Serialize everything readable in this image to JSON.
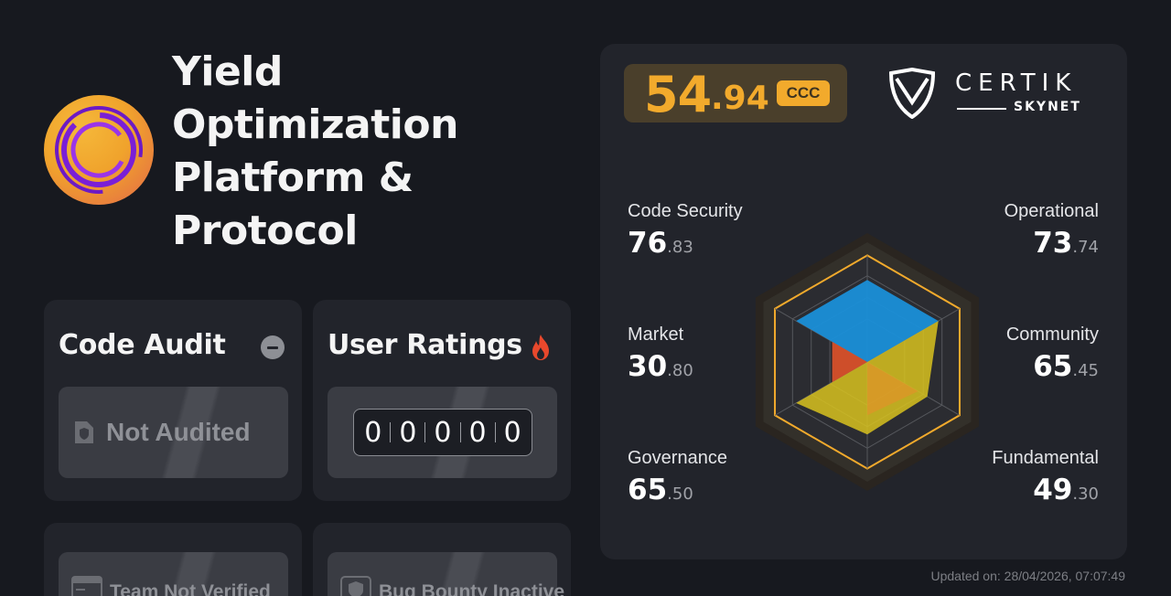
{
  "project": {
    "name": "Yield Optimization Platform & Protocol",
    "name_lines": [
      "Yield",
      "Optimization",
      "Platform &",
      "Protocol"
    ]
  },
  "code_audit": {
    "title": "Code Audit",
    "status": "Not Audited"
  },
  "user_ratings": {
    "title": "User Ratings",
    "digits": [
      "0",
      "0",
      "0",
      "0",
      "0"
    ]
  },
  "lower_cards": {
    "team": "Team Not Verified",
    "bounty": "Bug Bounty Inactive"
  },
  "score": {
    "integer": "54",
    "decimal": ".94",
    "grade": "CCC",
    "accent_color": "#f2aa2c"
  },
  "brand": {
    "name": "CERTIK",
    "sub": "SKYNET"
  },
  "metrics": {
    "code_security": {
      "label": "Code Security",
      "int": "76",
      "dec": ".83",
      "value": 76.83
    },
    "operational": {
      "label": "Operational",
      "int": "73",
      "dec": ".74",
      "value": 73.74
    },
    "market": {
      "label": "Market",
      "int": "30",
      "dec": ".80",
      "value": 30.8
    },
    "community": {
      "label": "Community",
      "int": "65",
      "dec": ".45",
      "value": 65.45
    },
    "governance": {
      "label": "Governance",
      "int": "65",
      "dec": ".50",
      "value": 65.5
    },
    "fundamental": {
      "label": "Fundamental",
      "int": "49",
      "dec": ".30",
      "value": 49.3
    }
  },
  "colors": {
    "security_fill": "#1a8fd8",
    "community_fill": "#d8c21f",
    "market_fill": "#e0522a",
    "frame": "#f2aa2c"
  },
  "updated": "Updated on: 28/04/2026, 07:07:49"
}
